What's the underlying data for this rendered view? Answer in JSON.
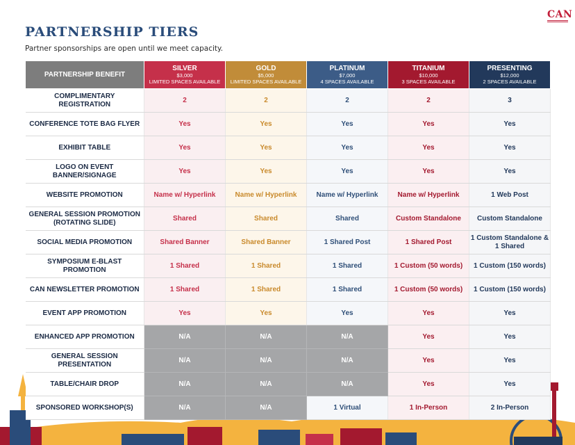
{
  "logo": {
    "text": "CAN"
  },
  "title": "PARTNERSHIP TIERS",
  "subtitle": "Partner sponsorships are open until we meet capacity.",
  "colors": {
    "silver": "#c5304a",
    "gold": "#c18c39",
    "platinum": "#3c5c87",
    "titanium": "#a3192f",
    "presenting": "#22395b",
    "benefit_header": "#7d7d7d",
    "na_fill": "#a5a6a8"
  },
  "header": {
    "benefit_label": "PARTNERSHIP BENEFIT",
    "tiers": [
      {
        "name": "SILVER",
        "price": "$3,000",
        "spaces": "LIMITED SPACES AVAILABLE"
      },
      {
        "name": "GOLD",
        "price": "$5,000",
        "spaces": "LIMITED SPACES AVAILABLE"
      },
      {
        "name": "PLATINUM",
        "price": "$7,000",
        "spaces": "4 SPACES AVAILABLE"
      },
      {
        "name": "TITANIUM",
        "price": "$10,000",
        "spaces": "3 SPACES AVAILABLE"
      },
      {
        "name": "PRESENTING",
        "price": "$12,000",
        "spaces": "2 SPACES AVAILABLE"
      }
    ]
  },
  "rows": [
    {
      "benefit": "COMPLIMENTARY REGISTRATION",
      "values": [
        "2",
        "2",
        "2",
        "2",
        "3"
      ]
    },
    {
      "benefit": "CONFERENCE TOTE BAG FLYER",
      "values": [
        "Yes",
        "Yes",
        "Yes",
        "Yes",
        "Yes"
      ]
    },
    {
      "benefit": "EXHIBIT TABLE",
      "values": [
        "Yes",
        "Yes",
        "Yes",
        "Yes",
        "Yes"
      ]
    },
    {
      "benefit": "LOGO ON EVENT BANNER/SIGNAGE",
      "values": [
        "Yes",
        "Yes",
        "Yes",
        "Yes",
        "Yes"
      ]
    },
    {
      "benefit": "WEBSITE PROMOTION",
      "values": [
        "Name w/ Hyperlink",
        "Name w/ Hyperlink",
        "Name w/ Hyperlink",
        "Name w/ Hyperlink",
        "1 Web Post"
      ]
    },
    {
      "benefit": "GENERAL SESSION PROMOTION (ROTATING SLIDE)",
      "values": [
        "Shared",
        "Shared",
        "Shared",
        "Custom Standalone",
        "Custom Standalone"
      ]
    },
    {
      "benefit": "SOCIAL MEDIA PROMOTION",
      "values": [
        "Shared Banner",
        "Shared Banner",
        "1 Shared Post",
        "1 Shared Post",
        "1 Custom Standalone & 1 Shared"
      ]
    },
    {
      "benefit": "SYMPOSIUM E-BLAST PROMOTION",
      "values": [
        "1 Shared",
        "1 Shared",
        "1 Shared",
        "1 Custom (50 words)",
        "1 Custom (150 words)"
      ]
    },
    {
      "benefit": "CAN NEWSLETTER PROMOTION",
      "values": [
        "1 Shared",
        "1 Shared",
        "1 Shared",
        "1 Custom (50 words)",
        "1 Custom (150 words)"
      ]
    },
    {
      "benefit": "EVENT APP PROMOTION",
      "values": [
        "Yes",
        "Yes",
        "Yes",
        "Yes",
        "Yes"
      ]
    },
    {
      "benefit": "ENHANCED APP PROMOTION",
      "values": [
        "N/A",
        "N/A",
        "N/A",
        "Yes",
        "Yes"
      ]
    },
    {
      "benefit": "GENERAL SESSION PRESENTATION",
      "values": [
        "N/A",
        "N/A",
        "N/A",
        "Yes",
        "Yes"
      ]
    },
    {
      "benefit": "TABLE/CHAIR DROP",
      "values": [
        "N/A",
        "N/A",
        "N/A",
        "Yes",
        "Yes"
      ]
    },
    {
      "benefit": "SPONSORED WORKSHOP(S)",
      "values": [
        "N/A",
        "N/A",
        "1 Virtual",
        "1 In-Person",
        "2 In-Person"
      ]
    }
  ]
}
